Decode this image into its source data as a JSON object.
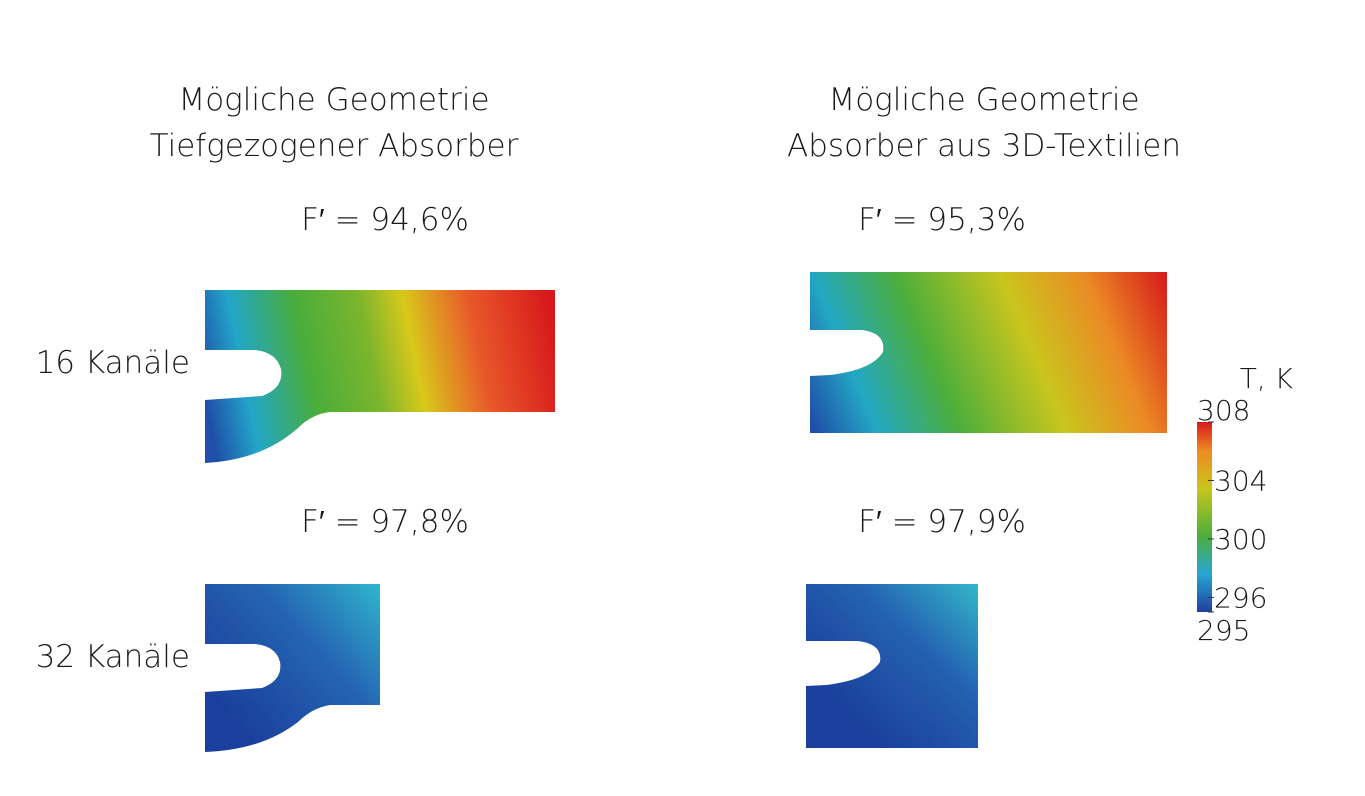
{
  "columns": [
    {
      "title_line1": "Mögliche Geometrie",
      "title_line2": "Tiefgezogener Absorber",
      "efficiency_16": "F′ = 94,6%",
      "efficiency_32": "F′ = 97,8%"
    },
    {
      "title_line1": "Mögliche Geometrie",
      "title_line2": "Absorber aus 3D-Textilien",
      "efficiency_16": "F′ = 95,3%",
      "efficiency_32": "F′ = 97,9%"
    }
  ],
  "rows": [
    "16 Kanäle",
    "32 Kanäle"
  ],
  "colorbar": {
    "title": "T, K",
    "ticks": [
      308,
      304,
      300,
      296,
      295
    ]
  }
}
